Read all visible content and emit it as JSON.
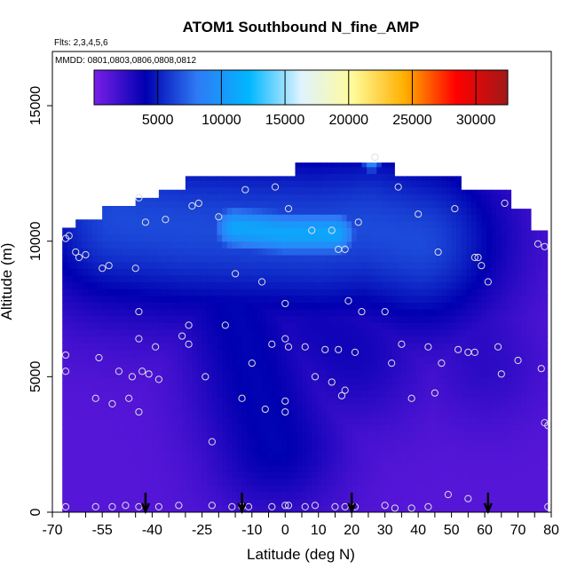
{
  "chart_data": {
    "type": "heatmap",
    "title": "ATOM1 Southbound N_fine_AMP",
    "flights_label": "Flts: 2,3,4,5,6",
    "dates_label": "MMDD: 0801,0803,0806,0808,0812",
    "xlabel": "Latitude (deg N)",
    "ylabel": "Altitude (m)",
    "xlim": [
      -70,
      80
    ],
    "ylim": [
      0,
      17000
    ],
    "x_ticks": [
      -70,
      -55,
      -40,
      -25,
      -10,
      0,
      10,
      20,
      30,
      40,
      50,
      60,
      70,
      80
    ],
    "x_minor_ticks": [
      -65,
      -60,
      -50,
      -45,
      -35,
      -30,
      -20,
      -15,
      -5,
      5,
      15,
      25,
      35,
      45,
      55,
      65,
      75
    ],
    "y_ticks": [
      0,
      5000,
      10000,
      15000
    ],
    "colorbar": {
      "min": 0,
      "max": 32500,
      "ticks": [
        5000,
        10000,
        15000,
        20000,
        25000,
        30000
      ],
      "colors": [
        "#7a1fe8",
        "#0000b0",
        "#2f7bf5",
        "#00b7ff",
        "#dff3ff",
        "#fffb9a",
        "#ffb000",
        "#ff0000",
        "#a01818"
      ]
    },
    "profile_cutoff_lat": 60,
    "upper_boundary": [
      {
        "lat": -67,
        "alt": 10500
      },
      {
        "lat": -63,
        "alt": 10800
      },
      {
        "lat": -55,
        "alt": 11300
      },
      {
        "lat": -45,
        "alt": 11600
      },
      {
        "lat": -38,
        "alt": 11900
      },
      {
        "lat": -30,
        "alt": 12400
      },
      {
        "lat": -12,
        "alt": 12400
      },
      {
        "lat": 2,
        "alt": 12400
      },
      {
        "lat": 3,
        "alt": 12900
      },
      {
        "lat": 32,
        "alt": 12900
      },
      {
        "lat": 33,
        "alt": 12400
      },
      {
        "lat": 50,
        "alt": 12400
      },
      {
        "lat": 53,
        "alt": 11900
      },
      {
        "lat": 68,
        "alt": 11200
      },
      {
        "lat": 74,
        "alt": 10400
      },
      {
        "lat": 79,
        "alt": 10000
      }
    ],
    "lower_boundary": [
      {
        "lat": -67,
        "alt": 0
      },
      {
        "lat": 79,
        "alt": 0
      }
    ],
    "features": [
      {
        "type": "plume",
        "label": "upper-troposphere band",
        "points": [
          {
            "lat": -50,
            "alt": 10800
          },
          {
            "lat": -30,
            "alt": 10500
          },
          {
            "lat": -10,
            "alt": 10400
          },
          {
            "lat": 10,
            "alt": 10300
          },
          {
            "lat": 25,
            "alt": 10500
          },
          {
            "lat": 40,
            "alt": 10000
          }
        ],
        "value": 6500,
        "width_alt": 2400
      },
      {
        "type": "plume",
        "label": "bright layer",
        "points": [
          {
            "lat": -15,
            "alt": 10500
          },
          {
            "lat": 0,
            "alt": 10300
          },
          {
            "lat": 15,
            "alt": 10300
          }
        ],
        "value": 11000,
        "width_alt": 700
      },
      {
        "type": "plume",
        "label": "diagonal descent",
        "points": [
          {
            "lat": -20,
            "alt": 9000
          },
          {
            "lat": -12,
            "alt": 6500
          },
          {
            "lat": -8,
            "alt": 4500
          },
          {
            "lat": -3,
            "alt": 2500
          }
        ],
        "value": 4200,
        "width_alt": 1800
      },
      {
        "type": "plume",
        "label": "tropical column",
        "points": [
          {
            "lat": 5,
            "alt": 9000
          },
          {
            "lat": 10,
            "alt": 7000
          },
          {
            "lat": 20,
            "alt": 6000
          }
        ],
        "value": 3500,
        "width_alt": 2000
      },
      {
        "type": "plume",
        "label": "southern layer",
        "points": [
          {
            "lat": -60,
            "alt": 8500
          },
          {
            "lat": -40,
            "alt": 7500
          },
          {
            "lat": -20,
            "alt": 7000
          }
        ],
        "value": 2800,
        "width_alt": 1000
      },
      {
        "type": "plume",
        "label": "northern tongue",
        "points": [
          {
            "lat": 45,
            "alt": 9000
          },
          {
            "lat": 55,
            "alt": 7500
          },
          {
            "lat": 60,
            "alt": 5500
          }
        ],
        "value": 2600,
        "width_alt": 1600
      },
      {
        "type": "plume",
        "label": "top spike",
        "points": [
          {
            "lat": 26,
            "alt": 12900
          },
          {
            "lat": 26,
            "alt": 13500
          }
        ],
        "value": 9000,
        "width_alt": 300
      }
    ],
    "observation_points": [
      {
        "lat": -65,
        "alt": 10200
      },
      {
        "lat": -66,
        "alt": 10100
      },
      {
        "lat": -63,
        "alt": 9600
      },
      {
        "lat": -62,
        "alt": 9400
      },
      {
        "lat": -60,
        "alt": 9500
      },
      {
        "lat": -55,
        "alt": 9000
      },
      {
        "lat": -53,
        "alt": 9100
      },
      {
        "lat": -45,
        "alt": 9000
      },
      {
        "lat": -44,
        "alt": 11600
      },
      {
        "lat": -42,
        "alt": 10700
      },
      {
        "lat": -36,
        "alt": 10800
      },
      {
        "lat": -28,
        "alt": 11300
      },
      {
        "lat": -26,
        "alt": 11400
      },
      {
        "lat": -20,
        "alt": 10900
      },
      {
        "lat": -12,
        "alt": 11900
      },
      {
        "lat": -15,
        "alt": 8800
      },
      {
        "lat": -7,
        "alt": 8500
      },
      {
        "lat": -3,
        "alt": 12000
      },
      {
        "lat": 1,
        "alt": 11200
      },
      {
        "lat": 8,
        "alt": 10400
      },
      {
        "lat": 14,
        "alt": 10400
      },
      {
        "lat": 16,
        "alt": 9700
      },
      {
        "lat": 18,
        "alt": 9700
      },
      {
        "lat": 22,
        "alt": 10700
      },
      {
        "lat": 27,
        "alt": 13100
      },
      {
        "lat": 34,
        "alt": 12000
      },
      {
        "lat": 40,
        "alt": 11000
      },
      {
        "lat": 51,
        "alt": 11200
      },
      {
        "lat": 46,
        "alt": 9600
      },
      {
        "lat": 57,
        "alt": 9400
      },
      {
        "lat": 58,
        "alt": 9400
      },
      {
        "lat": 59,
        "alt": 9100
      },
      {
        "lat": 61,
        "alt": 8500
      },
      {
        "lat": 66,
        "alt": 11400
      },
      {
        "lat": 76,
        "alt": 9900
      },
      {
        "lat": 78,
        "alt": 9800
      },
      {
        "lat": -44,
        "alt": 7400
      },
      {
        "lat": -44,
        "alt": 6400
      },
      {
        "lat": -29,
        "alt": 6900
      },
      {
        "lat": -39,
        "alt": 6100
      },
      {
        "lat": -31,
        "alt": 6500
      },
      {
        "lat": -18,
        "alt": 6900
      },
      {
        "lat": 0,
        "alt": 7700
      },
      {
        "lat": 19,
        "alt": 7800
      },
      {
        "lat": 23,
        "alt": 7400
      },
      {
        "lat": 30,
        "alt": 7400
      },
      {
        "lat": -66,
        "alt": 5800
      },
      {
        "lat": -66,
        "alt": 5200
      },
      {
        "lat": -56,
        "alt": 5700
      },
      {
        "lat": -50,
        "alt": 5200
      },
      {
        "lat": -46,
        "alt": 5000
      },
      {
        "lat": -43,
        "alt": 5200
      },
      {
        "lat": -41,
        "alt": 5100
      },
      {
        "lat": -38,
        "alt": 4900
      },
      {
        "lat": -29,
        "alt": 6200
      },
      {
        "lat": -10,
        "alt": 5500
      },
      {
        "lat": -4,
        "alt": 6200
      },
      {
        "lat": 1,
        "alt": 6100
      },
      {
        "lat": 0,
        "alt": 6400
      },
      {
        "lat": 6,
        "alt": 6100
      },
      {
        "lat": 9,
        "alt": 5000
      },
      {
        "lat": 12,
        "alt": 6000
      },
      {
        "lat": 16,
        "alt": 6000
      },
      {
        "lat": 14,
        "alt": 4800
      },
      {
        "lat": 17,
        "alt": 4300
      },
      {
        "lat": 18,
        "alt": 4500
      },
      {
        "lat": 21,
        "alt": 5900
      },
      {
        "lat": 32,
        "alt": 5500
      },
      {
        "lat": 35,
        "alt": 6200
      },
      {
        "lat": 38,
        "alt": 4200
      },
      {
        "lat": 43,
        "alt": 6100
      },
      {
        "lat": 47,
        "alt": 5500
      },
      {
        "lat": 52,
        "alt": 6000
      },
      {
        "lat": 55,
        "alt": 5900
      },
      {
        "lat": 57,
        "alt": 5900
      },
      {
        "lat": 64,
        "alt": 6100
      },
      {
        "lat": 65,
        "alt": 5100
      },
      {
        "lat": 70,
        "alt": 5600
      },
      {
        "lat": 77,
        "alt": 5300
      },
      {
        "lat": -57,
        "alt": 4200
      },
      {
        "lat": -52,
        "alt": 4000
      },
      {
        "lat": -47,
        "alt": 4200
      },
      {
        "lat": -44,
        "alt": 3700
      },
      {
        "lat": -24,
        "alt": 5000
      },
      {
        "lat": -13,
        "alt": 4200
      },
      {
        "lat": -6,
        "alt": 3800
      },
      {
        "lat": 0,
        "alt": 4100
      },
      {
        "lat": 0,
        "alt": 3700
      },
      {
        "lat": 45,
        "alt": 4400
      },
      {
        "lat": 78,
        "alt": 3300
      },
      {
        "lat": 79,
        "alt": 3200
      },
      {
        "lat": -22,
        "alt": 2600
      },
      {
        "lat": -66,
        "alt": 200
      },
      {
        "lat": -57,
        "alt": 200
      },
      {
        "lat": -52,
        "alt": 200
      },
      {
        "lat": -48,
        "alt": 250
      },
      {
        "lat": -44,
        "alt": 200
      },
      {
        "lat": -38,
        "alt": 200
      },
      {
        "lat": -32,
        "alt": 250
      },
      {
        "lat": -22,
        "alt": 250
      },
      {
        "lat": -16,
        "alt": 200
      },
      {
        "lat": -13,
        "alt": 200
      },
      {
        "lat": -11,
        "alt": 200
      },
      {
        "lat": -4,
        "alt": 200
      },
      {
        "lat": 0,
        "alt": 250
      },
      {
        "lat": 1,
        "alt": 250
      },
      {
        "lat": 6,
        "alt": 200
      },
      {
        "lat": 9,
        "alt": 250
      },
      {
        "lat": 15,
        "alt": 200
      },
      {
        "lat": 18,
        "alt": 200
      },
      {
        "lat": 21,
        "alt": 200
      },
      {
        "lat": 30,
        "alt": 250
      },
      {
        "lat": 33,
        "alt": 150
      },
      {
        "lat": 38,
        "alt": 150
      },
      {
        "lat": 43,
        "alt": 200
      },
      {
        "lat": 49,
        "alt": 650
      },
      {
        "lat": 55,
        "alt": 500
      },
      {
        "lat": 79,
        "alt": 200
      }
    ],
    "arrows_lat": [
      -42,
      -13,
      20,
      61
    ]
  }
}
